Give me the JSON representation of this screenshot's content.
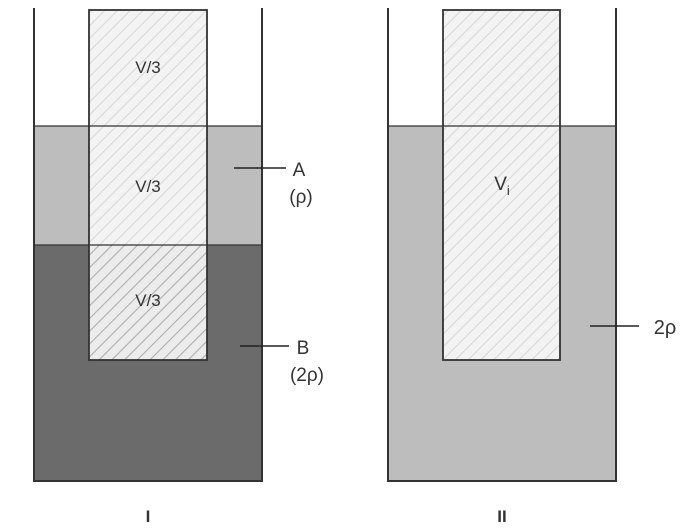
{
  "colors": {
    "light_liquid": "#bdbdbd",
    "dark_liquid": "#6b6b6b",
    "block_fill": "#f3f3f3",
    "outline": "#333333",
    "hatch": "#d6d6d6",
    "hatch_dark": "#aeaeae"
  },
  "figure_1": {
    "caption": "I",
    "block_upper": "V/3",
    "block_middle": "V/3",
    "block_lower": "V/3",
    "liquid_a_name": "A",
    "liquid_a_density": "(ρ)",
    "liquid_b_name": "B",
    "liquid_b_density": "(2ρ)"
  },
  "figure_2": {
    "caption": "II",
    "immersed_volume": "V",
    "immersed_volume_subscript": "i",
    "liquid_density": "2ρ"
  }
}
